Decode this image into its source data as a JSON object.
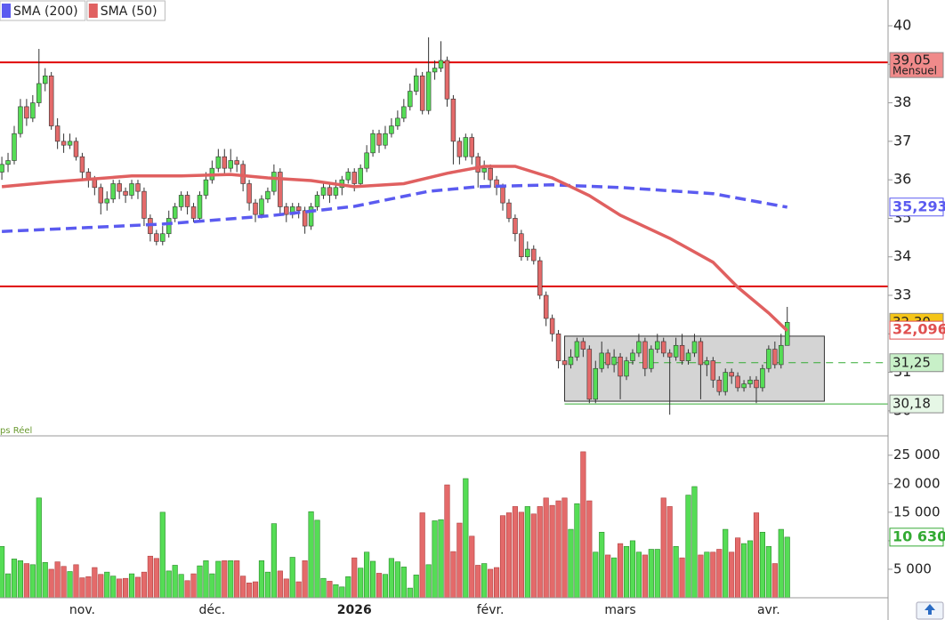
{
  "chart_data": {
    "type": "candlestick",
    "categories": [
      null,
      null,
      null,
      null,
      null,
      null,
      null,
      null,
      null,
      null,
      null,
      null,
      null,
      "nov.",
      null,
      null,
      null,
      null,
      null,
      null,
      null,
      null,
      null,
      null,
      null,
      null,
      null,
      null,
      null,
      null,
      null,
      null,
      null,
      null,
      "déc.",
      null,
      null,
      null,
      null,
      null,
      null,
      null,
      null,
      null,
      null,
      null,
      null,
      null,
      null,
      null,
      null,
      null,
      null,
      null,
      null,
      null,
      null,
      "2026",
      null,
      null,
      null,
      null,
      null,
      null,
      null,
      null,
      null,
      null,
      null,
      null,
      null,
      null,
      null,
      null,
      null,
      null,
      null,
      null,
      null,
      "févr.",
      null,
      null,
      null,
      null,
      null,
      null,
      null,
      null,
      null,
      null,
      null,
      null,
      null,
      null,
      null,
      null,
      null,
      null,
      null,
      null,
      "mars",
      null,
      null,
      null,
      null,
      null,
      null,
      null,
      null,
      null,
      null,
      null,
      null,
      null,
      null,
      null,
      null,
      null,
      null,
      null,
      null,
      null,
      null,
      null,
      "avr.",
      null,
      null,
      null
    ],
    "open": [
      36.2,
      36.4,
      36.5,
      37.2,
      37.9,
      37.6,
      38.0,
      38.5,
      38.7,
      37.4,
      37.0,
      36.9,
      37.0,
      36.6,
      36.2,
      36.0,
      35.8,
      35.4,
      35.5,
      35.9,
      35.7,
      35.6,
      35.9,
      35.7,
      35.0,
      34.6,
      34.4,
      34.6,
      35.0,
      35.3,
      35.6,
      35.3,
      35.0,
      35.6,
      36.0,
      36.3,
      36.6,
      36.3,
      36.5,
      36.4,
      35.9,
      35.4,
      35.1,
      35.5,
      35.7,
      36.2,
      35.3,
      35.1,
      35.3,
      35.2,
      34.8,
      35.3,
      35.6,
      35.8,
      35.6,
      35.8,
      36.0,
      36.2,
      35.9,
      36.3,
      36.7,
      37.2,
      36.9,
      37.2,
      37.4,
      37.6,
      37.9,
      38.3,
      38.7,
      37.8,
      38.8,
      38.9,
      39.1,
      38.1,
      37.0,
      36.6,
      37.1,
      36.6,
      36.2,
      36.3,
      36.0,
      35.8,
      35.4,
      35.0,
      34.6,
      34.0,
      34.2,
      33.9,
      33.0,
      32.4,
      32.0,
      31.3,
      31.2,
      31.4,
      31.8,
      31.6,
      30.3,
      31.1,
      31.5,
      31.2,
      31.4,
      30.9,
      31.3,
      31.5,
      31.8,
      31.1,
      31.6,
      31.8,
      31.5,
      31.4,
      31.7,
      31.3,
      31.5,
      31.8,
      31.2,
      31.3,
      30.8,
      30.5,
      31.0,
      30.9,
      30.6,
      30.7,
      30.8,
      30.6,
      31.1,
      31.6,
      31.2,
      31.7
    ],
    "high": [
      36.6,
      36.7,
      37.4,
      38.1,
      38.1,
      38.2,
      39.4,
      38.9,
      38.8,
      37.6,
      37.2,
      37.2,
      37.1,
      36.7,
      36.3,
      36.1,
      35.9,
      35.7,
      36.0,
      36.0,
      35.8,
      36.0,
      36.0,
      35.8,
      35.1,
      34.7,
      34.8,
      35.2,
      35.4,
      35.7,
      35.7,
      35.4,
      35.7,
      36.2,
      36.5,
      36.8,
      36.8,
      36.8,
      36.6,
      36.5,
      36.0,
      35.5,
      35.6,
      35.8,
      36.4,
      36.3,
      35.4,
      35.4,
      35.4,
      35.3,
      35.4,
      35.7,
      35.9,
      35.9,
      36.0,
      36.1,
      36.3,
      36.3,
      36.4,
      36.9,
      37.3,
      37.3,
      37.4,
      37.6,
      37.8,
      38.1,
      38.5,
      38.9,
      38.8,
      39.7,
      39.1,
      39.6,
      39.2,
      38.2,
      37.1,
      37.2,
      37.2,
      36.7,
      36.5,
      36.4,
      36.1,
      35.9,
      35.5,
      35.1,
      34.7,
      34.4,
      34.3,
      34.0,
      33.1,
      32.5,
      32.1,
      31.5,
      31.6,
      31.9,
      31.9,
      31.7,
      31.3,
      31.8,
      31.6,
      31.6,
      31.5,
      31.4,
      31.6,
      32.0,
      31.9,
      31.7,
      32.0,
      31.9,
      31.6,
      31.9,
      32.0,
      31.6,
      32.0,
      31.9,
      31.4,
      31.4,
      30.9,
      31.1,
      31.1,
      31.0,
      30.8,
      30.9,
      30.9,
      31.2,
      31.7,
      31.8,
      32.0,
      32.7
    ],
    "low": [
      36.0,
      36.2,
      36.4,
      37.1,
      37.4,
      37.5,
      37.9,
      38.3,
      37.3,
      36.8,
      36.7,
      36.8,
      36.5,
      36.0,
      35.8,
      35.6,
      35.1,
      35.2,
      35.4,
      35.5,
      35.4,
      35.5,
      35.5,
      34.8,
      34.4,
      34.3,
      34.3,
      34.5,
      34.9,
      35.2,
      35.1,
      34.9,
      34.9,
      35.5,
      35.9,
      36.2,
      36.1,
      36.2,
      36.2,
      35.7,
      35.2,
      34.9,
      35.0,
      35.4,
      35.6,
      35.1,
      34.9,
      35.0,
      35.0,
      34.6,
      34.7,
      35.2,
      35.5,
      35.4,
      35.5,
      35.6,
      35.9,
      35.7,
      35.8,
      36.2,
      36.6,
      36.7,
      36.8,
      37.1,
      37.3,
      37.5,
      37.8,
      38.2,
      37.7,
      37.7,
      38.6,
      38.8,
      37.9,
      36.4,
      36.4,
      36.5,
      36.4,
      35.8,
      36.0,
      35.8,
      35.6,
      35.2,
      34.9,
      34.4,
      33.9,
      33.9,
      33.8,
      32.9,
      32.2,
      31.8,
      31.1,
      31.0,
      31.1,
      31.3,
      31.4,
      30.2,
      30.2,
      31.0,
      31.1,
      31.0,
      30.3,
      30.8,
      31.2,
      31.4,
      30.9,
      31.0,
      31.5,
      31.4,
      29.9,
      31.3,
      31.2,
      31.2,
      31.4,
      30.3,
      30.9,
      30.6,
      30.4,
      30.4,
      30.7,
      30.5,
      30.5,
      30.6,
      30.2,
      30.5,
      31.0,
      31.1,
      31.1,
      31.7
    ],
    "close": [
      36.4,
      36.5,
      37.2,
      37.9,
      37.6,
      38.0,
      38.5,
      38.7,
      37.4,
      37.0,
      36.9,
      37.0,
      36.6,
      36.2,
      36.0,
      35.8,
      35.4,
      35.5,
      35.9,
      35.7,
      35.6,
      35.9,
      35.7,
      35.0,
      34.6,
      34.4,
      34.6,
      35.0,
      35.3,
      35.6,
      35.3,
      35.0,
      35.6,
      36.0,
      36.3,
      36.6,
      36.3,
      36.5,
      36.4,
      35.9,
      35.4,
      35.1,
      35.5,
      35.7,
      36.2,
      35.3,
      35.1,
      35.3,
      35.2,
      34.8,
      35.3,
      35.6,
      35.8,
      35.6,
      35.8,
      36.0,
      36.2,
      35.9,
      36.3,
      36.7,
      37.2,
      36.9,
      37.2,
      37.4,
      37.6,
      37.9,
      38.3,
      38.7,
      37.8,
      38.8,
      38.9,
      39.1,
      38.1,
      37.0,
      36.6,
      37.1,
      36.6,
      36.2,
      36.3,
      36.0,
      35.8,
      35.4,
      35.0,
      34.6,
      34.0,
      34.2,
      33.9,
      33.0,
      32.4,
      32.0,
      31.3,
      31.2,
      31.4,
      31.8,
      31.6,
      30.3,
      31.1,
      31.5,
      31.2,
      31.4,
      30.9,
      31.3,
      31.5,
      31.8,
      31.1,
      31.6,
      31.8,
      31.5,
      31.4,
      31.7,
      31.3,
      31.5,
      31.8,
      31.2,
      31.3,
      30.8,
      30.5,
      31.0,
      30.9,
      30.6,
      30.7,
      30.8,
      30.6,
      31.1,
      31.6,
      31.2,
      31.7,
      32.3
    ],
    "volume": [
      9000,
      4200,
      6800,
      6500,
      6000,
      5800,
      17500,
      6200,
      5000,
      6300,
      5500,
      4600,
      5800,
      3500,
      3700,
      5300,
      4100,
      4500,
      3800,
      3300,
      3400,
      4200,
      3600,
      4500,
      7300,
      6900,
      15000,
      4700,
      5700,
      4100,
      3000,
      4200,
      5600,
      6500,
      4200,
      6400,
      6500,
      6500,
      6500,
      3800,
      2600,
      2800,
      6500,
      4500,
      13000,
      4700,
      3300,
      7100,
      2800,
      6500,
      15100,
      13600,
      3400,
      2900,
      2300,
      1900,
      3700,
      7000,
      5200,
      8000,
      6400,
      4300,
      4100,
      6900,
      6300,
      5400,
      1700,
      4000,
      14900,
      5800,
      13500,
      13700,
      19800,
      8100,
      13100,
      20900,
      10800,
      5700,
      6000,
      5000,
      5300,
      14400,
      14900,
      16000,
      15000,
      16000,
      14700,
      16000,
      17500,
      16200,
      17000,
      17500,
      12000,
      16500,
      25600,
      17000,
      8000,
      11500,
      7500,
      7000,
      9500,
      9000,
      10000,
      8000,
      7500,
      8500,
      8500,
      17500,
      16000,
      9000,
      7000,
      18000,
      19500,
      7500,
      8000,
      8000,
      8500,
      12000,
      8000,
      10500,
      9500,
      10000,
      14900,
      11500,
      9000,
      6000,
      12000,
      10630
    ],
    "up_color": "#55dd55",
    "down_color": "#e46a6a",
    "xlim": [
      -0.3,
      143.3
    ],
    "ylim": [
      29.35,
      40.67
    ],
    "yticks": [
      30,
      31,
      32,
      33,
      34,
      35,
      36,
      37,
      38,
      39,
      40
    ],
    "volume_ylim": [
      0,
      27300
    ],
    "volume_yticks": [
      {
        "value": 5000,
        "label": "5 000"
      },
      {
        "value": 10000,
        "label": "10 000"
      },
      {
        "value": 15000,
        "label": "15 000"
      },
      {
        "value": 20000,
        "label": "20 000"
      },
      {
        "value": 25000,
        "label": "25 000"
      }
    ],
    "series": [
      {
        "name": "SMA (200)",
        "color": "#5b5bf0",
        "dashed": true,
        "x": [
          0,
          14,
          26,
          43,
          57,
          69,
          77,
          89,
          100,
          115,
          127
        ],
        "values": [
          34.66,
          34.76,
          34.85,
          35.06,
          35.31,
          35.7,
          35.82,
          35.87,
          35.8,
          35.64,
          35.29
        ]
      },
      {
        "name": "SMA (50)",
        "color": "#e06060",
        "dashed": false,
        "x": [
          0,
          8,
          21,
          29,
          37,
          43,
          50,
          57,
          65,
          72,
          78,
          83,
          89,
          95,
          100,
          108,
          115,
          119,
          124,
          127
        ],
        "values": [
          35.82,
          35.94,
          36.1,
          36.1,
          36.14,
          36.05,
          35.98,
          35.82,
          35.9,
          36.17,
          36.35,
          36.35,
          36.05,
          35.59,
          35.08,
          34.48,
          33.86,
          33.21,
          32.54,
          32.08
        ]
      }
    ],
    "levels": [
      {
        "value": 39.05,
        "color": "#e00000",
        "dashed": false,
        "from": -0.3
      },
      {
        "value": 33.23,
        "color": "#e00000",
        "dashed": false,
        "from": -0.3
      },
      {
        "value": 31.25,
        "color": "#33aa33",
        "dashed": true,
        "from": 97
      },
      {
        "value": 30.18,
        "color": "#33aa33",
        "dashed": false,
        "from": 91
      }
    ],
    "zone": {
      "x": [
        91,
        133
      ],
      "y": [
        30.25,
        31.94
      ]
    },
    "price_tags": [
      {
        "value": 39.05,
        "label": "39,05",
        "note": "Mensuel",
        "bg": "#f08a8a",
        "fg": "#222"
      },
      {
        "value": 35.293,
        "label": "35,293",
        "bg": "#ffffff",
        "fg": "#5b5bf0"
      },
      {
        "value": 32.3,
        "label": "32,30",
        "bg": "#f5c518",
        "fg": "#222"
      },
      {
        "value": 32.096,
        "label": "32,096",
        "bg": "#ffffff",
        "fg": "#e05050"
      },
      {
        "value": 31.25,
        "label": "31,25",
        "bg": "#c8f0c8",
        "fg": "#222"
      },
      {
        "value": 30.18,
        "label": "30,18",
        "bg": "#e6f7e6",
        "fg": "#222"
      }
    ],
    "volume_tag": {
      "value": 10630,
      "label": "10 630",
      "bg": "#ffffff",
      "fg": "#33aa33"
    },
    "annotation": "ps Réel"
  }
}
